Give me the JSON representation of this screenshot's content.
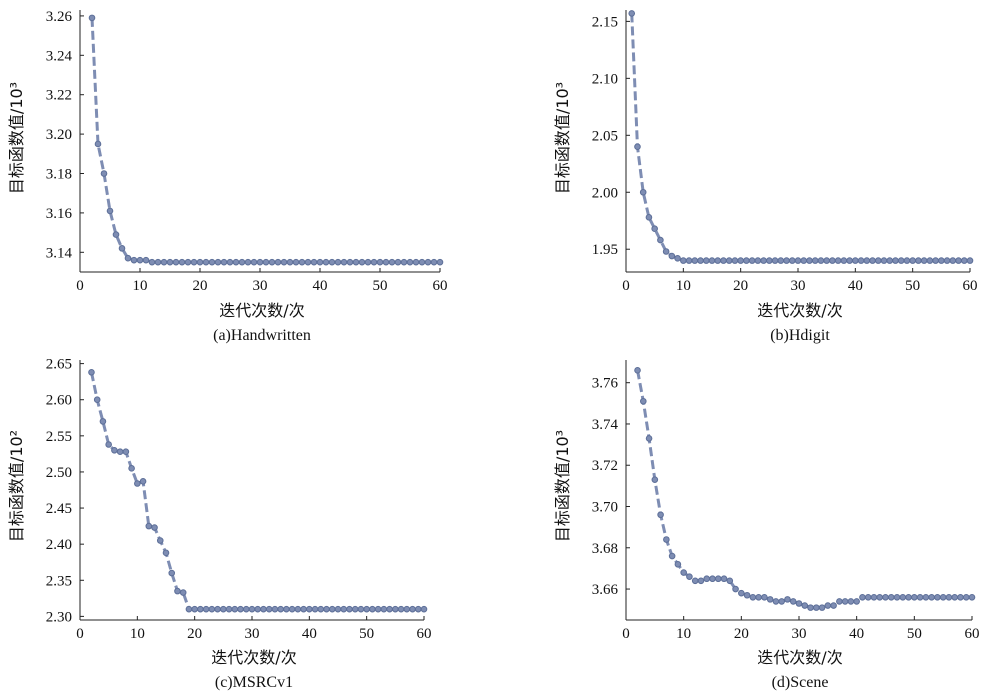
{
  "chart_data": [
    {
      "type": "line",
      "caption": "(a)Handwritten",
      "xlabel": "迭代次数/次",
      "ylabel": "目标函数值/10³",
      "xlim": [
        0,
        60
      ],
      "ylim": [
        3.13,
        3.263
      ],
      "xticks": [
        "0",
        "10",
        "20",
        "30",
        "40",
        "50",
        "60"
      ],
      "yticks": [
        "3.14",
        "3.16",
        "3.18",
        "3.20",
        "3.22",
        "3.24",
        "3.26"
      ],
      "color": "#7e8db3",
      "series": [
        {
          "x": [
            2,
            3,
            4,
            5,
            6,
            7,
            8,
            9,
            10,
            11,
            12,
            13,
            14,
            15,
            16,
            17,
            18,
            19,
            20,
            21,
            22,
            23,
            24,
            25,
            26,
            27,
            28,
            29,
            30,
            31,
            32,
            33,
            34,
            35,
            36,
            37,
            38,
            39,
            40,
            41,
            42,
            43,
            44,
            45,
            46,
            47,
            48,
            49,
            50,
            51,
            52,
            53,
            54,
            55,
            56,
            57,
            58,
            59,
            60
          ],
          "y": [
            3.259,
            3.195,
            3.18,
            3.161,
            3.149,
            3.142,
            3.137,
            3.136,
            3.136,
            3.136,
            3.135,
            3.135,
            3.135,
            3.135,
            3.135,
            3.135,
            3.135,
            3.135,
            3.135,
            3.135,
            3.135,
            3.135,
            3.135,
            3.135,
            3.135,
            3.135,
            3.135,
            3.135,
            3.135,
            3.135,
            3.135,
            3.135,
            3.135,
            3.135,
            3.135,
            3.135,
            3.135,
            3.135,
            3.135,
            3.135,
            3.135,
            3.135,
            3.135,
            3.135,
            3.135,
            3.135,
            3.135,
            3.135,
            3.135,
            3.135,
            3.135,
            3.135,
            3.135,
            3.135,
            3.135,
            3.135,
            3.135,
            3.135,
            3.135
          ]
        }
      ]
    },
    {
      "type": "line",
      "caption": "(b)Hdigit",
      "xlabel": "迭代次数/次",
      "ylabel": "目标函数值/10³",
      "xlim": [
        0,
        60
      ],
      "ylim": [
        1.93,
        2.16
      ],
      "xticks": [
        "0",
        "10",
        "20",
        "30",
        "40",
        "50",
        "60"
      ],
      "yticks": [
        "1.95",
        "2.00",
        "2.05",
        "2.10",
        "2.15"
      ],
      "color": "#7e8db3",
      "series": [
        {
          "x": [
            1,
            2,
            3,
            4,
            5,
            6,
            7,
            8,
            9,
            10,
            11,
            12,
            13,
            14,
            15,
            16,
            17,
            18,
            19,
            20,
            21,
            22,
            23,
            24,
            25,
            26,
            27,
            28,
            29,
            30,
            31,
            32,
            33,
            34,
            35,
            36,
            37,
            38,
            39,
            40,
            41,
            42,
            43,
            44,
            45,
            46,
            47,
            48,
            49,
            50,
            51,
            52,
            53,
            54,
            55,
            56,
            57,
            58,
            59,
            60
          ],
          "y": [
            2.157,
            2.04,
            2.0,
            1.978,
            1.968,
            1.958,
            1.948,
            1.944,
            1.942,
            1.94,
            1.94,
            1.94,
            1.94,
            1.94,
            1.94,
            1.94,
            1.94,
            1.94,
            1.94,
            1.94,
            1.94,
            1.94,
            1.94,
            1.94,
            1.94,
            1.94,
            1.94,
            1.94,
            1.94,
            1.94,
            1.94,
            1.94,
            1.94,
            1.94,
            1.94,
            1.94,
            1.94,
            1.94,
            1.94,
            1.94,
            1.94,
            1.94,
            1.94,
            1.94,
            1.94,
            1.94,
            1.94,
            1.94,
            1.94,
            1.94,
            1.94,
            1.94,
            1.94,
            1.94,
            1.94,
            1.94,
            1.94,
            1.94,
            1.94,
            1.94
          ]
        }
      ]
    },
    {
      "type": "line",
      "caption": "(c)MSRCv1",
      "xlabel": "迭代次数/次",
      "ylabel": "目标函数值/10²",
      "xlim": [
        0,
        60
      ],
      "ylim": [
        2.295,
        2.655
      ],
      "xticks": [
        "0",
        "10",
        "20",
        "30",
        "40",
        "50",
        "60"
      ],
      "yticks": [
        "2.30",
        "2.35",
        "2.40",
        "2.45",
        "2.50",
        "2.55",
        "2.60",
        "2.65"
      ],
      "color": "#7e8db3",
      "series": [
        {
          "x": [
            2,
            3,
            4,
            5,
            6,
            7,
            8,
            9,
            10,
            11,
            12,
            13,
            14,
            15,
            16,
            17,
            18,
            19,
            20,
            21,
            22,
            23,
            24,
            25,
            26,
            27,
            28,
            29,
            30,
            31,
            32,
            33,
            34,
            35,
            36,
            37,
            38,
            39,
            40,
            41,
            42,
            43,
            44,
            45,
            46,
            47,
            48,
            49,
            50,
            51,
            52,
            53,
            54,
            55,
            56,
            57,
            58,
            59,
            60
          ],
          "y": [
            2.638,
            2.6,
            2.57,
            2.538,
            2.53,
            2.528,
            2.528,
            2.505,
            2.484,
            2.487,
            2.425,
            2.423,
            2.405,
            2.388,
            2.36,
            2.335,
            2.333,
            2.31,
            2.31,
            2.31,
            2.31,
            2.31,
            2.31,
            2.31,
            2.31,
            2.31,
            2.31,
            2.31,
            2.31,
            2.31,
            2.31,
            2.31,
            2.31,
            2.31,
            2.31,
            2.31,
            2.31,
            2.31,
            2.31,
            2.31,
            2.31,
            2.31,
            2.31,
            2.31,
            2.31,
            2.31,
            2.31,
            2.31,
            2.31,
            2.31,
            2.31,
            2.31,
            2.31,
            2.31,
            2.31,
            2.31,
            2.31,
            2.31,
            2.31
          ]
        }
      ]
    },
    {
      "type": "line",
      "caption": "(d)Scene",
      "xlabel": "迭代次数/次",
      "ylabel": "目标函数值/10³",
      "xlim": [
        0,
        60
      ],
      "ylim": [
        3.645,
        3.771
      ],
      "xticks": [
        "0",
        "10",
        "20",
        "30",
        "40",
        "50",
        "60"
      ],
      "yticks": [
        "3.66",
        "3.68",
        "3.70",
        "3.72",
        "3.74",
        "3.76"
      ],
      "color": "#7e8db3",
      "series": [
        {
          "x": [
            2,
            3,
            4,
            5,
            6,
            7,
            8,
            9,
            10,
            11,
            12,
            13,
            14,
            15,
            16,
            17,
            18,
            19,
            20,
            21,
            22,
            23,
            24,
            25,
            26,
            27,
            28,
            29,
            30,
            31,
            32,
            33,
            34,
            35,
            36,
            37,
            38,
            39,
            40,
            41,
            42,
            43,
            44,
            45,
            46,
            47,
            48,
            49,
            50,
            51,
            52,
            53,
            54,
            55,
            56,
            57,
            58,
            59,
            60
          ],
          "y": [
            3.766,
            3.751,
            3.733,
            3.713,
            3.696,
            3.684,
            3.676,
            3.672,
            3.668,
            3.666,
            3.664,
            3.664,
            3.665,
            3.665,
            3.665,
            3.665,
            3.664,
            3.66,
            3.658,
            3.657,
            3.656,
            3.656,
            3.656,
            3.655,
            3.654,
            3.654,
            3.655,
            3.654,
            3.653,
            3.652,
            3.651,
            3.651,
            3.651,
            3.652,
            3.652,
            3.654,
            3.654,
            3.654,
            3.654,
            3.656,
            3.656,
            3.656,
            3.656,
            3.656,
            3.656,
            3.656,
            3.656,
            3.656,
            3.656,
            3.656,
            3.656,
            3.656,
            3.656,
            3.656,
            3.656,
            3.656,
            3.656,
            3.656,
            3.656
          ]
        }
      ]
    }
  ]
}
